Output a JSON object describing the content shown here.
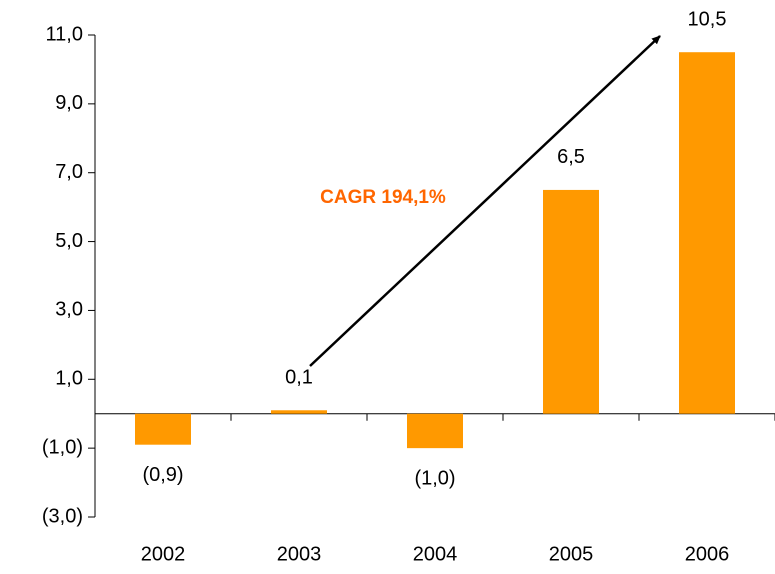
{
  "chart_data": {
    "type": "bar",
    "categories": [
      "2002",
      "2003",
      "2004",
      "2005",
      "2006"
    ],
    "values": [
      -0.9,
      0.1,
      -1.0,
      6.5,
      10.5
    ],
    "value_labels": [
      "(0,9)",
      "0,1",
      "(1,0)",
      "6,5",
      "10,5"
    ],
    "color": "#ff9900",
    "ylim": [
      -3,
      11
    ],
    "yticks": [
      {
        "value": 11,
        "label": "11,0"
      },
      {
        "value": 9,
        "label": "9,0"
      },
      {
        "value": 7,
        "label": "7,0"
      },
      {
        "value": 5,
        "label": "5,0"
      },
      {
        "value": 3,
        "label": "3,0"
      },
      {
        "value": 1,
        "label": "1,0"
      },
      {
        "value": -1,
        "label": "(1,0)"
      },
      {
        "value": -3,
        "label": "(3,0)"
      }
    ],
    "annotation": "CAGR 194,1%",
    "grid": false
  }
}
